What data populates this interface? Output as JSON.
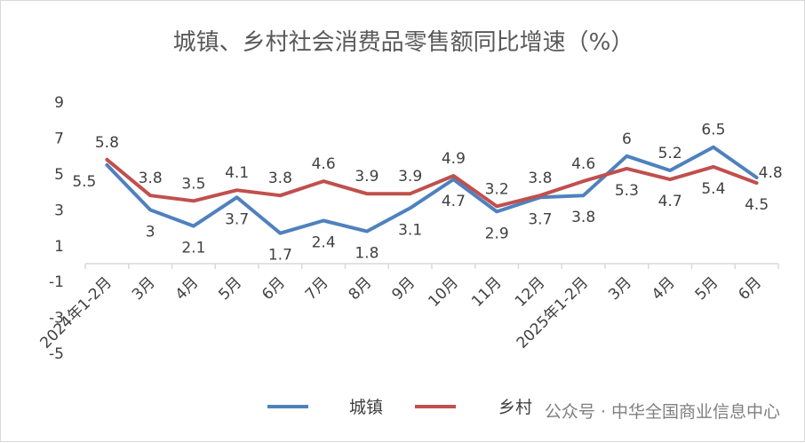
{
  "chart_data": {
    "type": "line",
    "title": "城镇、乡村社会消费品零售额同比增速（%）",
    "categories": [
      "2024年1-2月",
      "3月",
      "4月",
      "5月",
      "6月",
      "7月",
      "8月",
      "9月",
      "10月",
      "11月",
      "12月",
      "2025年1-2月",
      "3月",
      "4月",
      "5月",
      "6月"
    ],
    "ylim": [
      -5,
      9
    ],
    "yticks": [
      9,
      7,
      5,
      3,
      1,
      -1,
      -3,
      -5
    ],
    "grid": false,
    "legend_position": "bottom",
    "series": [
      {
        "name": "城镇",
        "color": "#4f81bd",
        "values": [
          5.5,
          3,
          2.1,
          3.7,
          1.7,
          2.4,
          1.8,
          3.1,
          4.7,
          2.9,
          3.7,
          3.8,
          6,
          5.2,
          6.5,
          4.8
        ]
      },
      {
        "name": "乡村",
        "color": "#c0504d",
        "values": [
          5.8,
          3.8,
          3.5,
          4.1,
          3.8,
          4.6,
          3.9,
          3.9,
          4.9,
          3.2,
          3.8,
          4.6,
          5.3,
          4.7,
          5.4,
          4.5
        ]
      }
    ]
  },
  "watermark": "公众号 · 中华全国商业信息中心"
}
